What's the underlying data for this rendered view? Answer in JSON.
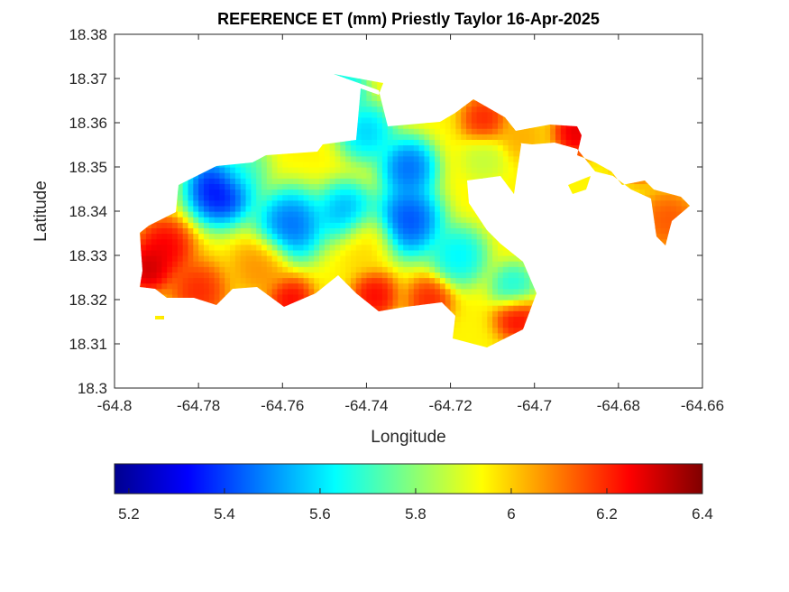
{
  "chart_data": {
    "type": "heatmap",
    "title": "REFERENCE ET (mm) Priestly Taylor 16-Apr-2025",
    "xlabel": "Longitude",
    "ylabel": "Latitude",
    "xlim": [
      -64.8,
      -64.66
    ],
    "ylim": [
      18.3,
      18.38
    ],
    "xticks": [
      -64.8,
      -64.78,
      -64.76,
      -64.74,
      -64.72,
      -64.7,
      -64.68,
      -64.66
    ],
    "xtick_labels": [
      "-64.8",
      "-64.78",
      "-64.76",
      "-64.74",
      "-64.72",
      "-64.7",
      "-64.68",
      "-64.66"
    ],
    "yticks": [
      18.3,
      18.31,
      18.32,
      18.33,
      18.34,
      18.35,
      18.36,
      18.37,
      18.38
    ],
    "ytick_labels": [
      "18.3",
      "18.31",
      "18.32",
      "18.33",
      "18.34",
      "18.35",
      "18.36",
      "18.37",
      "18.38"
    ],
    "colormap": "jet",
    "colorbar": {
      "orientation": "horizontal",
      "location": "bottom",
      "range": [
        5.17,
        6.4
      ],
      "ticks": [
        5.2,
        5.4,
        5.6,
        5.8,
        6,
        6.2,
        6.4
      ],
      "tick_labels": [
        "5.2",
        "5.4",
        "5.6",
        "5.8",
        "6",
        "6.2",
        "6.4"
      ]
    },
    "grid": false,
    "field": {
      "base": 5.95,
      "min": 5.17,
      "max": 6.4,
      "features": [
        {
          "lon": -64.775,
          "lat": 18.345,
          "value": 5.18,
          "radius": 0.006
        },
        {
          "lon": -64.758,
          "lat": 18.337,
          "value": 5.35,
          "radius": 0.006
        },
        {
          "lon": -64.745,
          "lat": 18.34,
          "value": 5.45,
          "radius": 0.005
        },
        {
          "lon": -64.73,
          "lat": 18.35,
          "value": 5.35,
          "radius": 0.005
        },
        {
          "lon": -64.73,
          "lat": 18.338,
          "value": 5.3,
          "radius": 0.006
        },
        {
          "lon": -64.74,
          "lat": 18.358,
          "value": 5.5,
          "radius": 0.005
        },
        {
          "lon": -64.745,
          "lat": 18.368,
          "value": 5.55,
          "radius": 0.004
        },
        {
          "lon": -64.718,
          "lat": 18.33,
          "value": 5.55,
          "radius": 0.005
        },
        {
          "lon": -64.705,
          "lat": 18.323,
          "value": 5.6,
          "radius": 0.004
        },
        {
          "lon": -64.77,
          "lat": 18.35,
          "value": 5.7,
          "radius": 0.005
        },
        {
          "lon": -64.712,
          "lat": 18.352,
          "value": 5.85,
          "radius": 0.004
        },
        {
          "lon": -64.788,
          "lat": 18.332,
          "value": 6.32,
          "radius": 0.005
        },
        {
          "lon": -64.792,
          "lat": 18.327,
          "value": 6.38,
          "radius": 0.004
        },
        {
          "lon": -64.78,
          "lat": 18.322,
          "value": 6.25,
          "radius": 0.005
        },
        {
          "lon": -64.758,
          "lat": 18.32,
          "value": 6.3,
          "radius": 0.004
        },
        {
          "lon": -64.738,
          "lat": 18.321,
          "value": 6.3,
          "radius": 0.004
        },
        {
          "lon": -64.725,
          "lat": 18.32,
          "value": 6.25,
          "radius": 0.004
        },
        {
          "lon": -64.704,
          "lat": 18.316,
          "value": 6.3,
          "radius": 0.004
        },
        {
          "lon": -64.712,
          "lat": 18.361,
          "value": 6.25,
          "radius": 0.004
        },
        {
          "lon": -64.703,
          "lat": 18.357,
          "value": 6.05,
          "radius": 0.004
        },
        {
          "lon": -64.69,
          "lat": 18.358,
          "value": 6.35,
          "radius": 0.004
        },
        {
          "lon": -64.675,
          "lat": 18.353,
          "value": 6.38,
          "radius": 0.004
        },
        {
          "lon": -64.668,
          "lat": 18.338,
          "value": 6.18,
          "radius": 0.005
        },
        {
          "lon": -64.74,
          "lat": 18.333,
          "value": 6.0,
          "radius": 0.005
        },
        {
          "lon": -64.765,
          "lat": 18.328,
          "value": 6.1,
          "radius": 0.005
        }
      ]
    }
  }
}
